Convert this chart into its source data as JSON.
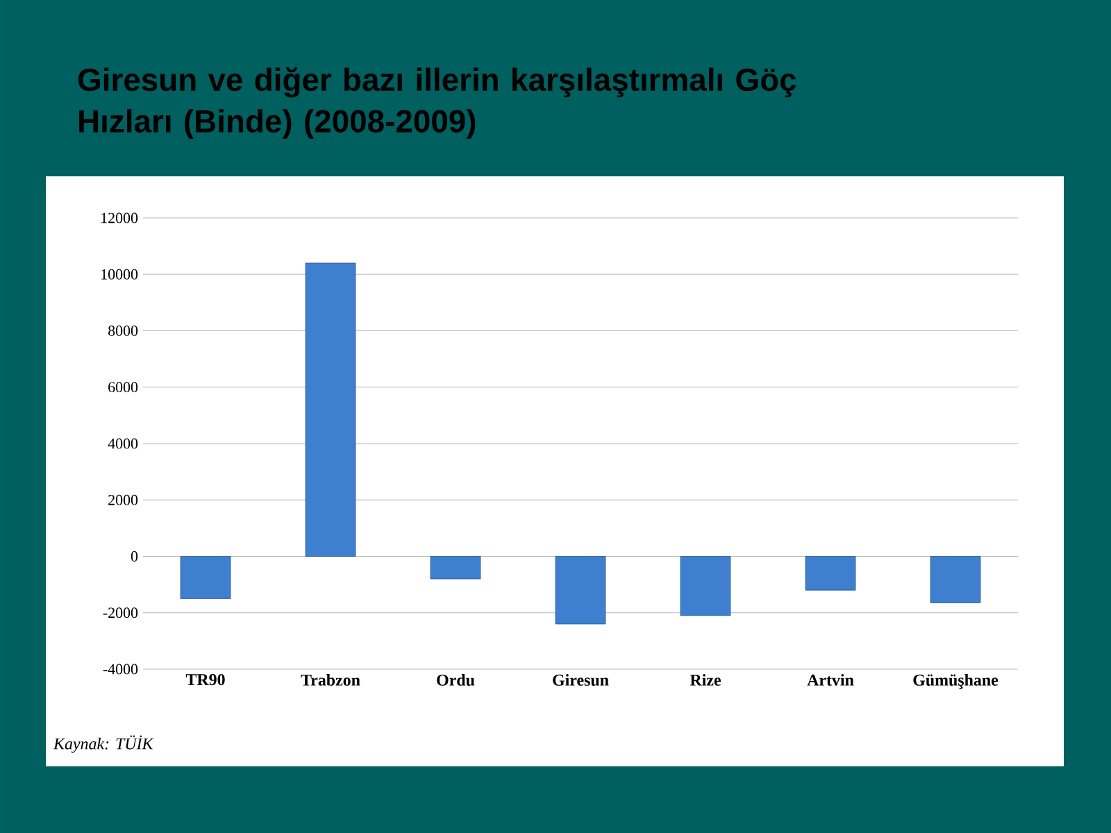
{
  "chart_data": {
    "type": "bar",
    "title": "Giresun ve diğer bazı illerin karşılaştırmalı Göç Hızları (Binde) (2008-2009)",
    "categories": [
      "TR90",
      "Trabzon",
      "Ordu",
      "Giresun",
      "Rize",
      "Artvin",
      "Gümüşhane"
    ],
    "values": [
      -1500,
      10400,
      -800,
      -2400,
      -2100,
      -1200,
      -1650
    ],
    "color": "#3f7fcf",
    "ylim": [
      -4000,
      12000
    ],
    "yticks": [
      -4000,
      -2000,
      0,
      2000,
      4000,
      6000,
      8000,
      10000,
      12000
    ],
    "grid": "y",
    "annotations": [
      "Kaynak: TÜİK"
    ]
  }
}
